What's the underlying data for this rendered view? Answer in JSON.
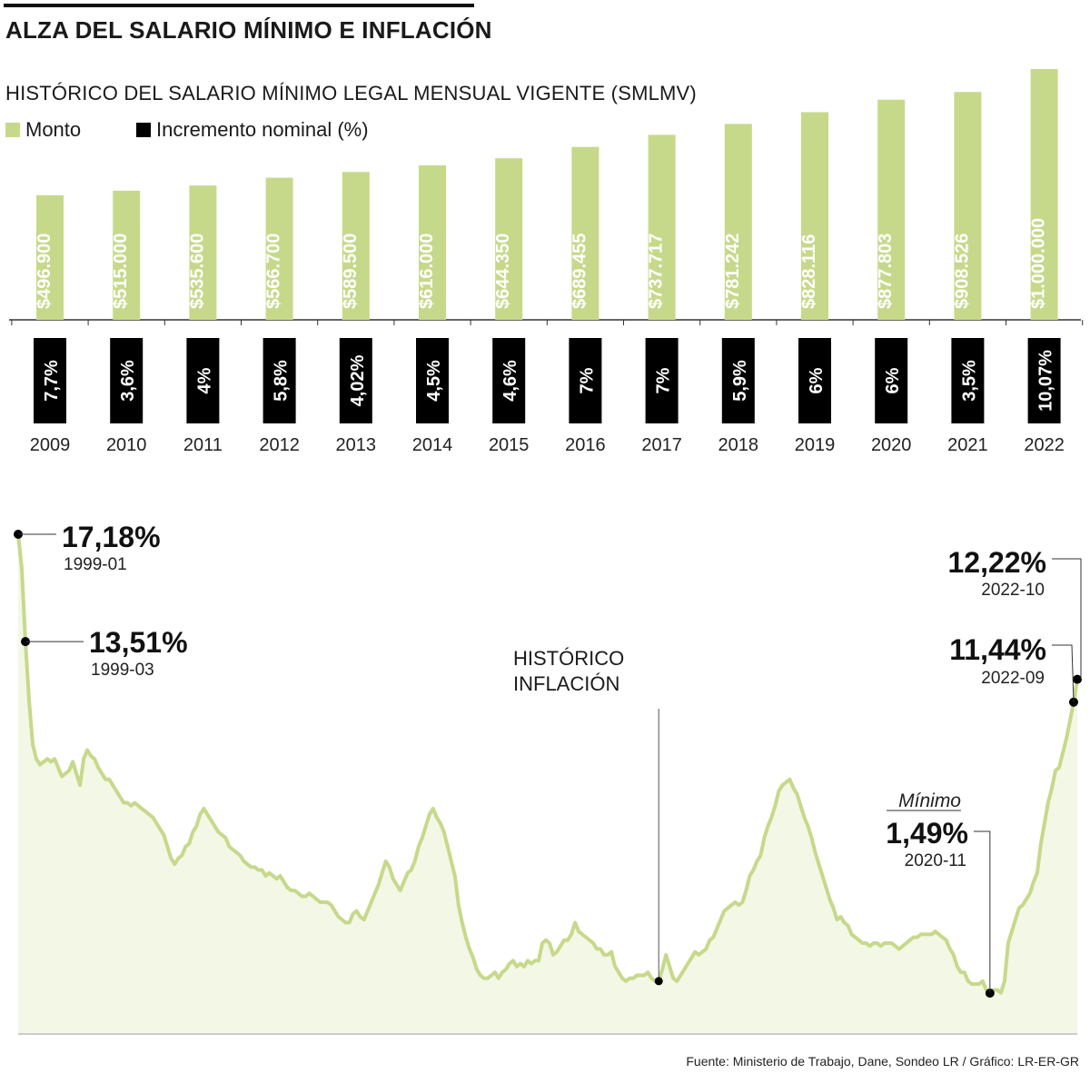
{
  "title": "ALZA DEL SALARIO MÍNIMO E INFLACIÓN",
  "subtitle": "HISTÓRICO DEL SALARIO MÍNIMO LEGAL MENSUAL VIGENTE (SMLMV)",
  "legend": {
    "monto": "Monto",
    "incremento": "Incremento nominal (%)"
  },
  "colors": {
    "bar": "#c6d98a",
    "pct_box": "#000000",
    "line": "#c6d98a",
    "area": "#f2f7e6",
    "text": "#1a1a1a"
  },
  "chart_data": [
    {
      "type": "bar",
      "categories": [
        "2009",
        "2010",
        "2011",
        "2012",
        "2013",
        "2014",
        "2015",
        "2016",
        "2017",
        "2018",
        "2019",
        "2020",
        "2021",
        "2022"
      ],
      "series": [
        {
          "name": "Monto",
          "values": [
            496900,
            515000,
            535600,
            566700,
            589500,
            616000,
            644350,
            689455,
            737717,
            781242,
            828116,
            877803,
            908526,
            1000000
          ],
          "labels": [
            "$496.900",
            "$515.000",
            "$535.600",
            "$566.700",
            "$589.500",
            "$616.000",
            "$644.350",
            "$689.455",
            "$737.717",
            "$781.242",
            "$828.116",
            "$877.803",
            "$908.526",
            "$1.000.000"
          ]
        },
        {
          "name": "Incremento nominal (%)",
          "values": [
            7.7,
            3.6,
            4,
            5.8,
            4.02,
            4.5,
            4.6,
            7,
            7,
            5.9,
            6,
            6,
            3.5,
            10.07
          ],
          "labels": [
            "7,7%",
            "3,6%",
            "4%",
            "5,8%",
            "4,02%",
            "4,5%",
            "4,6%",
            "7%",
            "7%",
            "5,9%",
            "6%",
            "6%",
            "3,5%",
            "10,07%"
          ]
        }
      ]
    },
    {
      "type": "area",
      "title": "HISTÓRICO INFLACIÓN",
      "x_start": "1999-01",
      "x_end": "2022-10",
      "ylim": [
        0,
        18
      ],
      "values": [
        17.18,
        16.0,
        13.51,
        11.5,
        10.0,
        9.5,
        9.3,
        9.4,
        9.5,
        9.4,
        9.5,
        9.2,
        8.9,
        9.0,
        9.1,
        9.4,
        9.0,
        8.6,
        9.5,
        9.8,
        9.6,
        9.5,
        9.2,
        9.0,
        8.8,
        8.8,
        8.6,
        8.4,
        8.2,
        8.0,
        8.0,
        7.9,
        8.0,
        7.9,
        7.8,
        7.7,
        7.6,
        7.5,
        7.3,
        7.1,
        6.9,
        6.5,
        6.1,
        5.9,
        6.1,
        6.2,
        6.5,
        6.6,
        7.0,
        7.2,
        7.6,
        7.8,
        7.6,
        7.4,
        7.2,
        7.0,
        6.9,
        6.8,
        6.5,
        6.4,
        6.3,
        6.2,
        6.0,
        5.9,
        5.8,
        5.8,
        5.7,
        5.7,
        5.5,
        5.6,
        5.5,
        5.4,
        5.5,
        5.3,
        5.1,
        5.0,
        5.0,
        4.9,
        4.8,
        4.8,
        4.9,
        4.8,
        4.7,
        4.6,
        4.6,
        4.6,
        4.5,
        4.3,
        4.1,
        4.0,
        3.9,
        3.9,
        4.2,
        4.3,
        4.1,
        4.0,
        4.3,
        4.6,
        4.9,
        5.2,
        5.6,
        6.0,
        5.8,
        5.4,
        5.2,
        5.0,
        5.3,
        5.6,
        5.7,
        6.0,
        6.5,
        6.8,
        7.2,
        7.6,
        7.8,
        7.5,
        7.3,
        7.0,
        6.5,
        6.0,
        5.5,
        4.5,
        3.9,
        3.4,
        3.0,
        2.7,
        2.3,
        2.1,
        2.0,
        2.0,
        2.1,
        2.2,
        2.0,
        2.2,
        2.3,
        2.5,
        2.6,
        2.4,
        2.5,
        2.4,
        2.6,
        2.5,
        2.6,
        2.6,
        3.2,
        3.3,
        3.2,
        2.8,
        2.9,
        3.1,
        3.3,
        3.3,
        3.5,
        3.9,
        3.6,
        3.5,
        3.4,
        3.3,
        3.2,
        3.0,
        3.0,
        2.8,
        2.8,
        2.9,
        2.4,
        2.2,
        2.0,
        1.9,
        2.0,
        2.0,
        2.1,
        2.1,
        2.1,
        2.2,
        2.0,
        1.9,
        1.9,
        2.3,
        2.8,
        2.4,
        2.0,
        1.9,
        2.1,
        2.3,
        2.5,
        2.7,
        2.9,
        2.8,
        2.9,
        3.0,
        3.3,
        3.4,
        3.7,
        4.0,
        4.3,
        4.4,
        4.5,
        4.6,
        4.5,
        4.6,
        5.0,
        5.5,
        5.7,
        6.0,
        6.2,
        6.8,
        7.2,
        7.5,
        7.9,
        8.4,
        8.6,
        8.7,
        8.8,
        8.5,
        8.3,
        7.9,
        7.5,
        7.2,
        6.8,
        6.3,
        5.9,
        5.5,
        5.1,
        4.7,
        4.4,
        4.0,
        4.1,
        3.9,
        3.8,
        3.5,
        3.4,
        3.3,
        3.2,
        3.2,
        3.1,
        3.2,
        3.2,
        3.1,
        3.2,
        3.2,
        3.2,
        3.1,
        3.0,
        3.1,
        3.2,
        3.3,
        3.4,
        3.4,
        3.5,
        3.5,
        3.5,
        3.5,
        3.6,
        3.5,
        3.4,
        3.3,
        3.0,
        2.8,
        2.4,
        2.2,
        2.2,
        1.9,
        1.8,
        1.8,
        1.8,
        1.9,
        1.6,
        1.49,
        1.6,
        1.6,
        1.5,
        1.9,
        3.2,
        3.6,
        4.0,
        4.4,
        4.5,
        4.7,
        4.9,
        5.3,
        5.6,
        6.6,
        7.3,
        8.0,
        8.5,
        9.1,
        9.2,
        9.7,
        10.2,
        10.8,
        11.44,
        12.22
      ],
      "annotations": [
        {
          "value": "17,18%",
          "date": "1999-01"
        },
        {
          "value": "13,51%",
          "date": "1999-03"
        },
        {
          "value": "12,22%",
          "date": "2022-10"
        },
        {
          "value": "11,44%",
          "date": "2022-09"
        },
        {
          "label": "Mínimo",
          "value": "1,49%",
          "date": "2020-11"
        }
      ]
    }
  ],
  "source": "Fuente: Ministerio de Trabajo, Dane, Sondeo LR / Gráfico: LR-ER-GR"
}
